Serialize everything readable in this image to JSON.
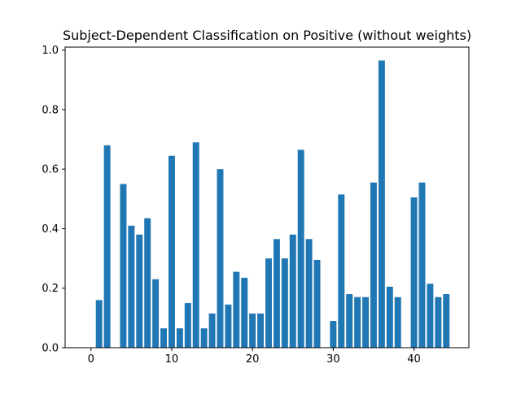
{
  "chart_data": {
    "type": "bar",
    "title": "Subject-Dependent Classification on Positive (without weights)",
    "xlabel": "",
    "ylabel": "",
    "x": [
      0,
      1,
      2,
      3,
      4,
      5,
      6,
      7,
      8,
      9,
      10,
      11,
      12,
      13,
      14,
      15,
      16,
      17,
      18,
      19,
      20,
      21,
      22,
      23,
      24,
      25,
      26,
      27,
      28,
      29,
      30,
      31,
      32,
      33,
      34,
      35,
      36,
      37,
      38,
      39,
      40,
      41,
      42,
      43,
      44
    ],
    "values": [
      0.0,
      0.16,
      0.68,
      0.0,
      0.55,
      0.41,
      0.38,
      0.435,
      0.23,
      0.065,
      0.645,
      0.065,
      0.15,
      0.69,
      0.065,
      0.115,
      0.6,
      0.145,
      0.255,
      0.235,
      0.115,
      0.115,
      0.3,
      0.365,
      0.3,
      0.38,
      0.665,
      0.365,
      0.295,
      0.0,
      0.09,
      0.515,
      0.18,
      0.17,
      0.17,
      0.555,
      0.965,
      0.205,
      0.17,
      0.0,
      0.505,
      0.555,
      0.215,
      0.17,
      0.18
    ],
    "xlim": [
      -3.2,
      46.8
    ],
    "ylim": [
      0,
      1.01
    ],
    "xticks": [
      0,
      10,
      20,
      30,
      40
    ],
    "xtick_labels": [
      "0",
      "10",
      "20",
      "30",
      "40"
    ],
    "yticks": [
      0.0,
      0.2,
      0.4,
      0.6,
      0.8,
      1.0
    ],
    "ytick_labels": [
      "0.0",
      "0.2",
      "0.4",
      "0.6",
      "0.8",
      "1.0"
    ],
    "grid": false,
    "bar_color": "#1f77b4"
  }
}
